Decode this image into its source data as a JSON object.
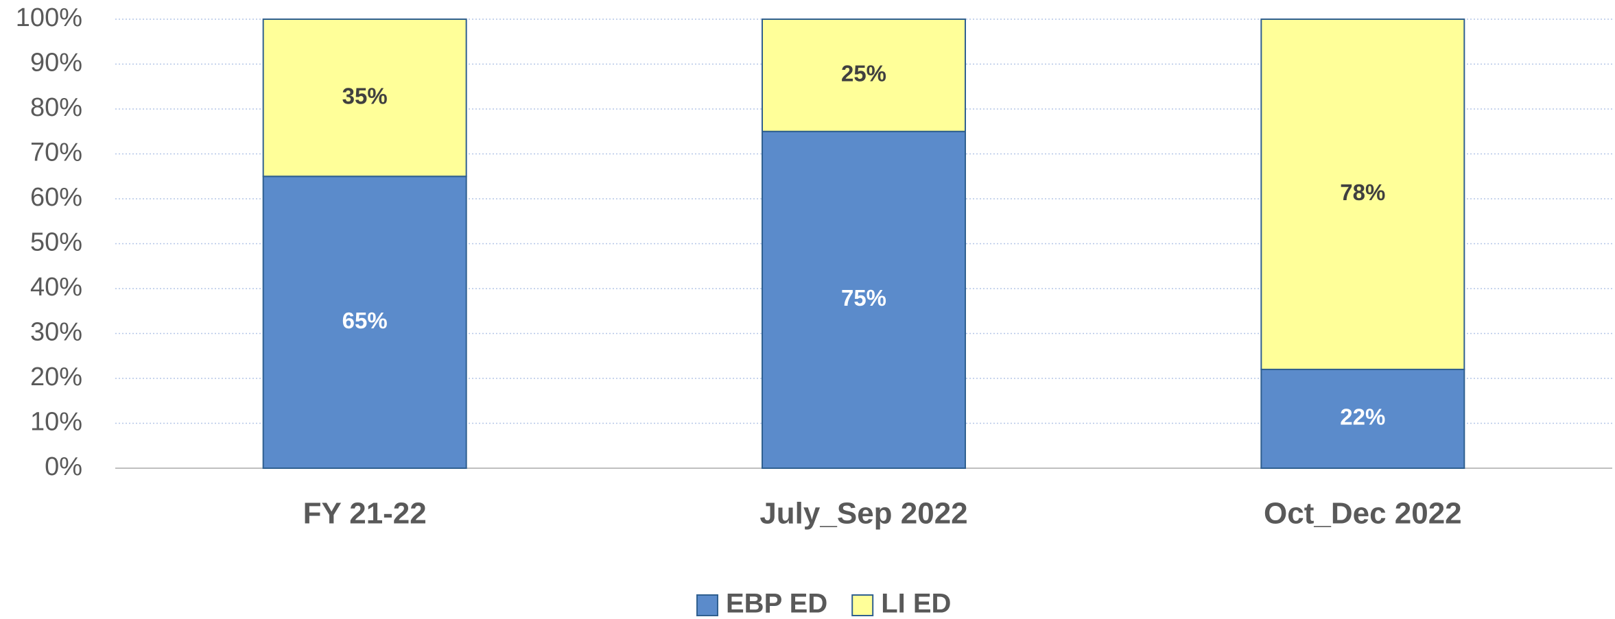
{
  "chart_data": {
    "type": "stacked_bar",
    "categories": [
      "FY 21-22",
      "July_Sep 2022",
      "Oct_Dec 2022"
    ],
    "series": [
      {
        "name": "EBP ED",
        "color": "#5b8bcb",
        "values": [
          65,
          75,
          22
        ],
        "value_labels": [
          "65%",
          "75%",
          "22%"
        ]
      },
      {
        "name": "LI ED",
        "color": "#ffff99",
        "values": [
          35,
          25,
          78
        ],
        "value_labels": [
          "35%",
          "25%",
          "78%"
        ]
      }
    ],
    "ylim": [
      0,
      100
    ],
    "yticks": [
      {
        "value": 0,
        "label": "0%"
      },
      {
        "value": 10,
        "label": "10%"
      },
      {
        "value": 20,
        "label": "20%"
      },
      {
        "value": 30,
        "label": "30%"
      },
      {
        "value": 40,
        "label": "40%"
      },
      {
        "value": 50,
        "label": "50%"
      },
      {
        "value": 60,
        "label": "60%"
      },
      {
        "value": 70,
        "label": "70%"
      },
      {
        "value": 80,
        "label": "80%"
      },
      {
        "value": 90,
        "label": "90%"
      },
      {
        "value": 100,
        "label": "100%"
      }
    ],
    "grid": true,
    "legend": "bottom"
  }
}
